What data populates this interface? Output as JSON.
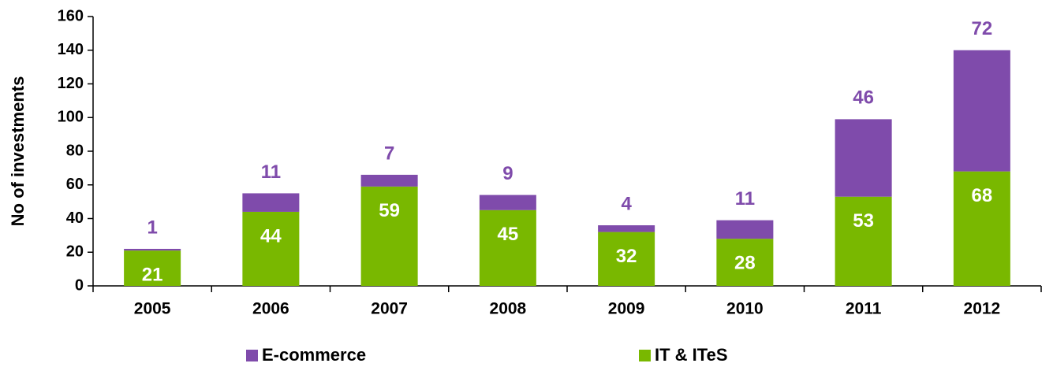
{
  "chart_data": {
    "type": "stacked_bar",
    "y_label": "No of investments",
    "categories": [
      "2005",
      "2006",
      "2007",
      "2008",
      "2009",
      "2010",
      "2011",
      "2012"
    ],
    "series": [
      {
        "name": "E-commerce",
        "color": "#7f4bab",
        "values": [
          1,
          11,
          7,
          9,
          4,
          11,
          46,
          72
        ]
      },
      {
        "name": "IT & ITeS",
        "color": "#79b800",
        "values": [
          21,
          44,
          59,
          45,
          32,
          28,
          53,
          68
        ]
      }
    ],
    "ylim": [
      0,
      160
    ],
    "yticks": [
      0,
      20,
      40,
      60,
      80,
      100,
      120,
      140,
      160
    ],
    "legend": "bottom"
  }
}
